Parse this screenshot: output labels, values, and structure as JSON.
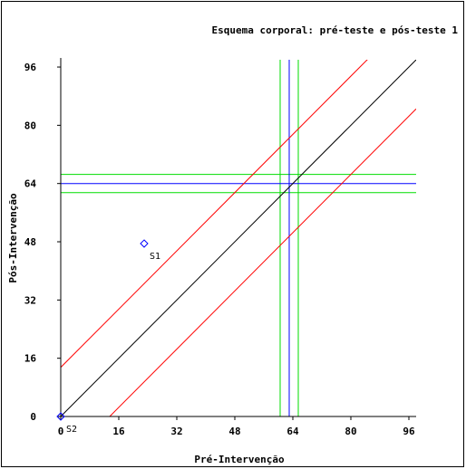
{
  "chart_data": {
    "type": "scatter",
    "title": "Esquema corporal: pré-teste e pós-teste 1",
    "xlabel": "Pré-Intervenção",
    "ylabel": "Pós-Intervenção",
    "xlim": [
      0,
      98
    ],
    "ylim": [
      0,
      98
    ],
    "xticks": [
      0,
      16,
      32,
      48,
      64,
      80,
      96
    ],
    "yticks": [
      0,
      16,
      32,
      48,
      64,
      80,
      96
    ],
    "points": [
      {
        "label": "S1",
        "x": 23,
        "y": 47.5
      },
      {
        "label": "S2",
        "x": 0,
        "y": 0
      }
    ],
    "identity_line": {
      "slope": 1,
      "intercept": 0,
      "color": "#000000"
    },
    "band_lines": {
      "offset": 13.5,
      "color": "#ff0000"
    },
    "mean_lines": {
      "x": 63,
      "y": 64,
      "color": "#0000ff"
    },
    "ci_lines": {
      "x": [
        60.5,
        65.5
      ],
      "y": [
        61.5,
        66.5
      ],
      "color": "#00dd00"
    },
    "marker_color": "#0000ff",
    "grid": false
  }
}
